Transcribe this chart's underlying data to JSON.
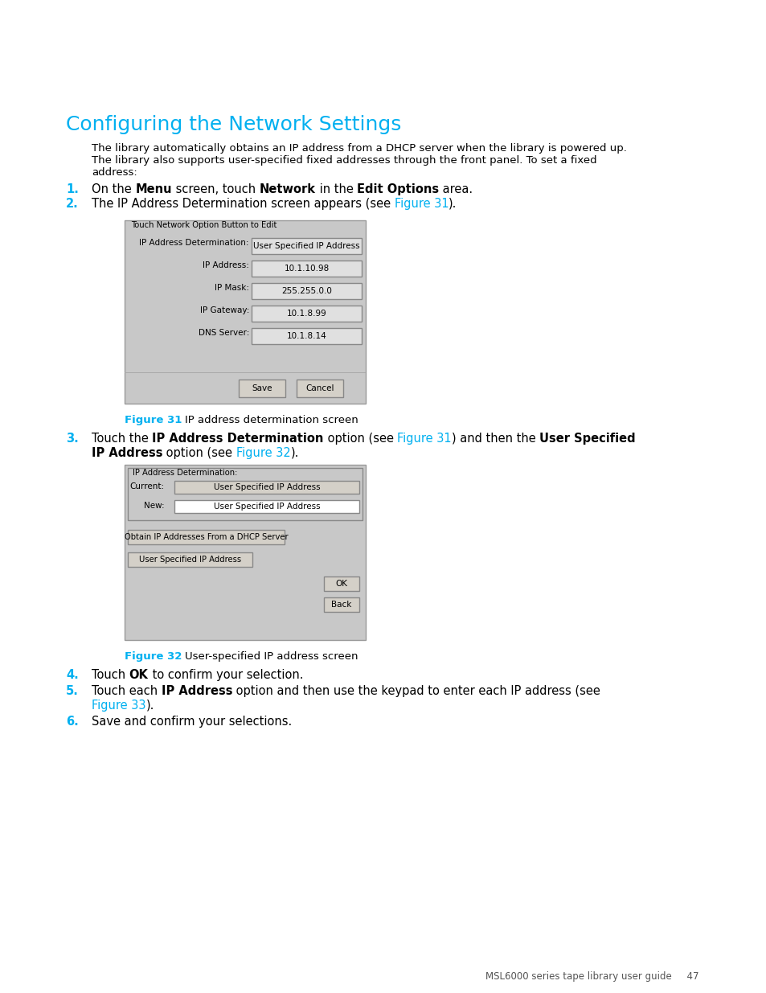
{
  "bg_color": "#ffffff",
  "title": "Configuring the Network Settings",
  "title_color": "#00b0f0",
  "title_fontsize": 18,
  "body_text_color": "#000000",
  "cyan_color": "#00b0f0",
  "body_fontsize": 9.5,
  "list_fontsize": 10.5,
  "para1_line1": "The library automatically obtains an IP address from a DHCP server when the library is powered up.",
  "para1_line2": "The library also supports user-specified fixed addresses through the front panel. To set a fixed",
  "para1_line3": "address:",
  "fig1_label": "Figure 31",
  "fig1_caption": "  IP address determination screen",
  "fig2_label": "Figure 32",
  "fig2_caption": "  User-specified IP address screen",
  "step6_text": "Save and confirm your selections.",
  "footer_text": "MSL6000 series tape library user guide     47",
  "dialog1_title": "Touch Network Option Button to Edit",
  "dialog1_fields": [
    {
      "label": "IP Address Determination:",
      "value": "User Specified IP Address"
    },
    {
      "label": "IP Address:",
      "value": "10.1.10.98"
    },
    {
      "label": "IP Mask:",
      "value": "255.255.0.0"
    },
    {
      "label": "IP Gateway:",
      "value": "10.1.8.99"
    },
    {
      "label": "DNS Server:",
      "value": "10.1.8.14"
    }
  ],
  "dialog1_buttons": [
    "Save",
    "Cancel"
  ],
  "dialog2_title": "IP Address Determination:",
  "dialog2_current_label": "Current:",
  "dialog2_current_value": "User Specified IP Address",
  "dialog2_new_label": "New:",
  "dialog2_new_value": "User Specified IP Address",
  "dialog2_option_buttons": [
    "Obtain IP Addresses From a DHCP Server",
    "User Specified IP Address"
  ],
  "dialog2_action_buttons": [
    "OK",
    "Back"
  ]
}
